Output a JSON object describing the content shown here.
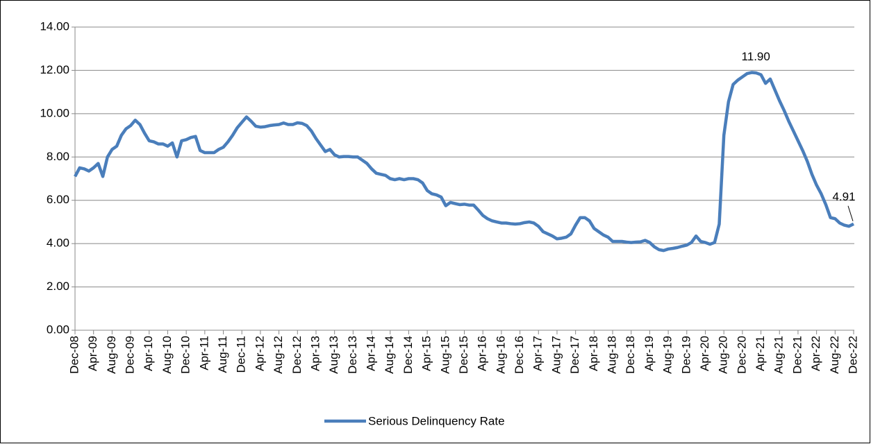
{
  "chart_data": {
    "type": "line",
    "categories": [
      "Dec-08",
      null,
      null,
      null,
      "Apr-09",
      null,
      null,
      null,
      "Aug-09",
      null,
      null,
      null,
      "Dec-09",
      null,
      null,
      null,
      "Apr-10",
      null,
      null,
      null,
      "Aug-10",
      null,
      null,
      null,
      "Dec-10",
      null,
      null,
      null,
      "Apr-11",
      null,
      null,
      null,
      "Aug-11",
      null,
      null,
      null,
      "Dec-11",
      null,
      null,
      null,
      "Apr-12",
      null,
      null,
      null,
      "Aug-12",
      null,
      null,
      null,
      "Dec-12",
      null,
      null,
      null,
      "Apr-13",
      null,
      null,
      null,
      "Aug-13",
      null,
      null,
      null,
      "Dec-13",
      null,
      null,
      null,
      "Apr-14",
      null,
      null,
      null,
      "Aug-14",
      null,
      null,
      null,
      "Dec-14",
      null,
      null,
      null,
      "Apr-15",
      null,
      null,
      null,
      "Aug-15",
      null,
      null,
      null,
      "Dec-15",
      null,
      null,
      null,
      "Apr-16",
      null,
      null,
      null,
      "Aug-16",
      null,
      null,
      null,
      "Dec-16",
      null,
      null,
      null,
      "Apr-17",
      null,
      null,
      null,
      "Aug-17",
      null,
      null,
      null,
      "Dec-17",
      null,
      null,
      null,
      "Apr-18",
      null,
      null,
      null,
      "Aug-18",
      null,
      null,
      null,
      "Dec-18",
      null,
      null,
      null,
      "Apr-19",
      null,
      null,
      null,
      "Aug-19",
      null,
      null,
      null,
      "Dec-19",
      null,
      null,
      null,
      "Apr-20",
      null,
      null,
      null,
      "Aug-20",
      null,
      null,
      null,
      "Dec-20",
      null,
      null,
      null,
      "Apr-21",
      null,
      null,
      null,
      "Aug-21",
      null,
      null,
      null,
      "Dec-21",
      null,
      null,
      null,
      "Apr-22",
      null,
      null,
      null,
      "Aug-22",
      null,
      null,
      null,
      "Dec-22"
    ],
    "series": [
      {
        "name": "Serious Delinquency Rate",
        "color": "#4a7ebb",
        "values": [
          7.1,
          7.5,
          7.45,
          7.35,
          7.5,
          7.7,
          7.1,
          8.0,
          8.35,
          8.5,
          9.0,
          9.3,
          9.45,
          9.7,
          9.5,
          9.1,
          8.75,
          8.7,
          8.6,
          8.6,
          8.5,
          8.65,
          8.0,
          8.75,
          8.8,
          8.9,
          8.95,
          8.3,
          8.2,
          8.2,
          8.2,
          8.35,
          8.45,
          8.7,
          9.0,
          9.35,
          9.6,
          9.85,
          9.65,
          9.42,
          9.38,
          9.4,
          9.45,
          9.48,
          9.5,
          9.57,
          9.5,
          9.5,
          9.58,
          9.55,
          9.45,
          9.2,
          8.85,
          8.55,
          8.25,
          8.35,
          8.1,
          8.0,
          8.02,
          8.02,
          8.0,
          8.0,
          7.85,
          7.7,
          7.45,
          7.25,
          7.2,
          7.15,
          7.0,
          6.95,
          7.0,
          6.95,
          7.0,
          7.0,
          6.95,
          6.8,
          6.45,
          6.3,
          6.25,
          6.15,
          5.75,
          5.9,
          5.85,
          5.8,
          5.82,
          5.78,
          5.78,
          5.55,
          5.3,
          5.15,
          5.05,
          5.0,
          4.95,
          4.95,
          4.92,
          4.9,
          4.92,
          4.97,
          5.0,
          4.95,
          4.8,
          4.55,
          4.45,
          4.35,
          4.22,
          4.25,
          4.3,
          4.45,
          4.85,
          5.2,
          5.2,
          5.05,
          4.7,
          4.55,
          4.4,
          4.3,
          4.1,
          4.1,
          4.1,
          4.07,
          4.05,
          4.07,
          4.08,
          4.15,
          4.05,
          3.85,
          3.72,
          3.68,
          3.75,
          3.78,
          3.82,
          3.88,
          3.93,
          4.05,
          4.35,
          4.1,
          4.05,
          3.97,
          4.05,
          4.9,
          9.0,
          10.55,
          11.35,
          11.55,
          11.7,
          11.85,
          11.9,
          11.88,
          11.8,
          11.4,
          11.6,
          11.1,
          10.6,
          10.15,
          9.65,
          9.2,
          8.75,
          8.3,
          7.8,
          7.2,
          6.7,
          6.3,
          5.8,
          5.2,
          5.15,
          4.95,
          4.85,
          4.8,
          4.91
        ],
        "value_labels": [
          null,
          null,
          null,
          null,
          null,
          null,
          null,
          null,
          null,
          null,
          null,
          null,
          null,
          null,
          null,
          null,
          null,
          null,
          null,
          null,
          null,
          null,
          null,
          null,
          null,
          null,
          null,
          null,
          null,
          null,
          null,
          null,
          null,
          null,
          null,
          null,
          null,
          null,
          null,
          null,
          null,
          null,
          null,
          null,
          null,
          null,
          null,
          null,
          null,
          null,
          null,
          null,
          null,
          null,
          null,
          null,
          null,
          null,
          null,
          null,
          null,
          null,
          null,
          null,
          null,
          null,
          null,
          null,
          null,
          null,
          null,
          null,
          null,
          null,
          null,
          null,
          null,
          null,
          null,
          null,
          null,
          null,
          null,
          null,
          null,
          null,
          null,
          null,
          null,
          null,
          null,
          null,
          null,
          null,
          null,
          null,
          null,
          null,
          null,
          null,
          null,
          null,
          null,
          null,
          null,
          null,
          null,
          null,
          null,
          null,
          null,
          null,
          null,
          null,
          null,
          null,
          null,
          null,
          null,
          null,
          null,
          null,
          null,
          null,
          null,
          null,
          null,
          null,
          null,
          null,
          null,
          null,
          null,
          null,
          null,
          null,
          null,
          null,
          null,
          null,
          null,
          null,
          null,
          null,
          null,
          null,
          "11.90",
          null,
          null,
          null,
          null,
          null,
          null,
          null,
          null,
          null,
          null,
          null,
          null,
          null,
          null,
          null,
          null,
          null,
          null,
          null,
          null,
          null,
          "4.91"
        ]
      }
    ],
    "ylim": [
      0,
      14
    ],
    "yticks": [
      {
        "value": 0,
        "label": "0.00"
      },
      {
        "value": 2,
        "label": "2.00"
      },
      {
        "value": 4,
        "label": "4.00"
      },
      {
        "value": 6,
        "label": "6.00"
      },
      {
        "value": 8,
        "label": "8.00"
      },
      {
        "value": 10,
        "label": "10.00"
      },
      {
        "value": 12,
        "label": "12.00"
      },
      {
        "value": 14,
        "label": "14.00"
      }
    ],
    "grid": true,
    "legend": "bottom"
  }
}
